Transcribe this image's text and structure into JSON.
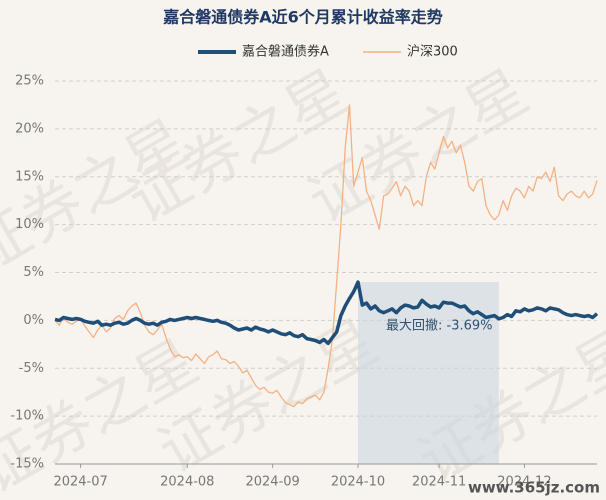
{
  "chart_data": {
    "type": "line",
    "title": "嘉合磐通债券A近6个月累计收益率走势",
    "categories": [
      null,
      null,
      null,
      null,
      null,
      null,
      "2024-07",
      null,
      null,
      null,
      null,
      null,
      null,
      null,
      null,
      null,
      null,
      null,
      null,
      null,
      null,
      null,
      null,
      null,
      null,
      null,
      null,
      null,
      null,
      null,
      null,
      "2024-08",
      null,
      null,
      null,
      null,
      null,
      null,
      null,
      null,
      null,
      null,
      null,
      null,
      null,
      null,
      null,
      null,
      null,
      null,
      null,
      "2024-09",
      null,
      null,
      null,
      null,
      null,
      null,
      null,
      null,
      null,
      null,
      null,
      null,
      null,
      null,
      null,
      null,
      null,
      null,
      null,
      "2024-10",
      null,
      null,
      null,
      null,
      null,
      null,
      null,
      null,
      null,
      null,
      null,
      null,
      null,
      null,
      null,
      null,
      null,
      null,
      "2024-11",
      null,
      null,
      null,
      null,
      null,
      null,
      null,
      null,
      null,
      null,
      null,
      null,
      null,
      null,
      null,
      null,
      null,
      null,
      null,
      "2024-12",
      null,
      null,
      null,
      null,
      null,
      null,
      null,
      null,
      null,
      null,
      null,
      null,
      null,
      null,
      null,
      null,
      null
    ],
    "series": [
      {
        "name": "嘉合磐通债券A",
        "color": "#1f4e79",
        "values": [
          0.1,
          0.0,
          0.3,
          0.2,
          0.1,
          0.2,
          0.1,
          -0.1,
          -0.2,
          -0.3,
          -0.1,
          -0.5,
          -0.4,
          -0.5,
          -0.3,
          -0.2,
          -0.4,
          -0.3,
          0.0,
          0.2,
          0.0,
          -0.3,
          -0.4,
          -0.3,
          -0.5,
          -0.2,
          -0.1,
          0.1,
          0.0,
          0.1,
          0.2,
          0.3,
          0.2,
          0.3,
          0.2,
          0.1,
          0.0,
          -0.1,
          0.0,
          -0.2,
          -0.3,
          -0.5,
          -0.8,
          -1.0,
          -0.9,
          -0.8,
          -1.0,
          -0.7,
          -0.9,
          -1.0,
          -1.2,
          -1.0,
          -1.2,
          -1.4,
          -1.5,
          -1.3,
          -1.6,
          -1.7,
          -1.5,
          -1.9,
          -2.0,
          -2.1,
          -2.3,
          -2.0,
          -2.4,
          -1.8,
          -1.2,
          0.5,
          1.5,
          2.3,
          3.0,
          4.0,
          1.6,
          1.8,
          1.2,
          1.5,
          1.0,
          0.8,
          1.0,
          1.2,
          0.8,
          1.3,
          1.6,
          1.5,
          1.3,
          1.4,
          2.1,
          1.7,
          1.4,
          1.5,
          1.3,
          1.9,
          1.8,
          1.8,
          1.6,
          1.4,
          1.5,
          1.0,
          0.7,
          0.9,
          0.6,
          0.3,
          0.4,
          0.5,
          0.16,
          0.3,
          0.6,
          0.4,
          1.0,
          0.9,
          1.2,
          1.0,
          1.1,
          1.3,
          1.2,
          1.0,
          1.3,
          1.2,
          1.1,
          0.8,
          0.6,
          0.5,
          0.6,
          0.5,
          0.4,
          0.5,
          0.3,
          0.7
        ]
      },
      {
        "name": "沪深300",
        "color": "#f4b183",
        "values": [
          0.0,
          -0.5,
          0.3,
          -0.2,
          -0.4,
          -0.1,
          0.2,
          -0.6,
          -1.2,
          -1.8,
          -1.0,
          -0.5,
          -1.2,
          -0.8,
          0.2,
          0.5,
          0.1,
          1.0,
          1.5,
          1.8,
          0.8,
          -0.5,
          -1.2,
          -1.5,
          -1.0,
          -0.4,
          -1.8,
          -3.0,
          -3.8,
          -3.6,
          -3.9,
          -3.8,
          -4.2,
          -3.5,
          -4.0,
          -4.5,
          -3.8,
          -3.6,
          -3.2,
          -4.0,
          -4.1,
          -4.5,
          -4.3,
          -4.8,
          -5.5,
          -5.2,
          -6.0,
          -6.8,
          -7.2,
          -7.0,
          -7.5,
          -7.6,
          -7.3,
          -8.0,
          -8.6,
          -8.8,
          -9.0,
          -8.5,
          -8.7,
          -8.2,
          -8.0,
          -7.8,
          -8.3,
          -7.5,
          -5.0,
          -2.0,
          4.0,
          10.0,
          18.0,
          22.5,
          14.0,
          15.5,
          17.0,
          13.5,
          12.5,
          11.0,
          9.5,
          13.0,
          13.2,
          13.8,
          14.5,
          13.0,
          14.0,
          13.5,
          12.0,
          12.5,
          12.0,
          15.0,
          16.5,
          15.8,
          17.5,
          19.2,
          18.0,
          18.7,
          17.5,
          18.3,
          16.5,
          14.0,
          13.5,
          14.5,
          14.8,
          12.0,
          11.0,
          10.5,
          11.0,
          12.5,
          11.5,
          13.0,
          13.8,
          13.5,
          12.8,
          14.0,
          13.5,
          15.0,
          14.8,
          15.5,
          14.5,
          16.0,
          13.0,
          12.5,
          13.2,
          13.5,
          13.0,
          12.8,
          13.5,
          12.8,
          13.2,
          14.6
        ]
      }
    ],
    "ylim": [
      -15,
      25
    ],
    "yticks": [
      {
        "value": -15,
        "label": "-15%"
      },
      {
        "value": -10,
        "label": "-10%"
      },
      {
        "value": -5,
        "label": "-5%"
      },
      {
        "value": 0,
        "label": "0%"
      },
      {
        "value": 5,
        "label": "5%"
      },
      {
        "value": 10,
        "label": "10%"
      },
      {
        "value": 15,
        "label": "15%"
      },
      {
        "value": 20,
        "label": "20%"
      },
      {
        "value": 25,
        "label": "25%"
      }
    ],
    "grid": true,
    "annotation": "最大回撤: -3.69%",
    "watermark": "证券之星",
    "site_mark": "www.365jz.com"
  }
}
